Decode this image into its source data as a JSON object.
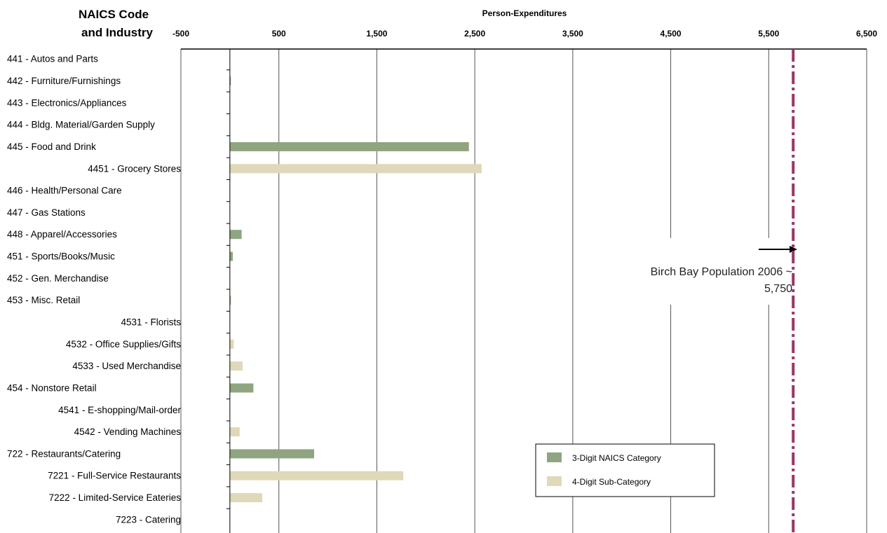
{
  "chart_data": {
    "type": "bar",
    "orientation": "horizontal",
    "y_header": [
      "NAICS Code",
      "and Industry"
    ],
    "xlabel": "Person-Expenditures",
    "xlim": [
      -500,
      6500
    ],
    "xticks": [
      "-500",
      "500",
      "1,500",
      "2,500",
      "3,500",
      "4,500",
      "5,500",
      "6,500"
    ],
    "grid": true,
    "categories": [
      {
        "label": "441 - Autos and Parts",
        "value": 0,
        "level": "3-digit"
      },
      {
        "label": "442 - Furniture/Furnishings",
        "value": 10,
        "level": "3-digit"
      },
      {
        "label": "443 - Electronics/Appliances",
        "value": 0,
        "level": "3-digit"
      },
      {
        "label": "444 - Bldg. Material/Garden Supply",
        "value": 0,
        "level": "3-digit"
      },
      {
        "label": "445 - Food and Drink",
        "value": 2440,
        "level": "3-digit"
      },
      {
        "label": "4451 - Grocery Stores",
        "value": 2570,
        "level": "4-digit"
      },
      {
        "label": "446 - Health/Personal Care",
        "value": 0,
        "level": "3-digit"
      },
      {
        "label": "447 - Gas Stations",
        "value": 0,
        "level": "3-digit"
      },
      {
        "label": "448 - Apparel/Accessories",
        "value": 120,
        "level": "3-digit"
      },
      {
        "label": "451 - Sports/Books/Music",
        "value": 30,
        "level": "3-digit"
      },
      {
        "label": "452 - Gen. Merchandise",
        "value": 0,
        "level": "3-digit"
      },
      {
        "label": "453 - Misc. Retail",
        "value": 10,
        "level": "3-digit"
      },
      {
        "label": "4531 - Florists",
        "value": 0,
        "level": "4-digit"
      },
      {
        "label": "4532 - Office Supplies/Gifts",
        "value": 40,
        "level": "4-digit"
      },
      {
        "label": "4533 - Used Merchandise",
        "value": 130,
        "level": "4-digit"
      },
      {
        "label": "454 - Nonstore Retail",
        "value": 240,
        "level": "3-digit"
      },
      {
        "label": "4541 - E-shopping/Mail-order",
        "value": 0,
        "level": "4-digit"
      },
      {
        "label": "4542 - Vending Machines",
        "value": 100,
        "level": "4-digit"
      },
      {
        "label": "722 - Restaurants/Catering",
        "value": 860,
        "level": "3-digit"
      },
      {
        "label": "7221 - Full-Service Restaurants",
        "value": 1770,
        "level": "4-digit"
      },
      {
        "label": "7222 - Limited-Service Eateries",
        "value": 330,
        "level": "4-digit"
      },
      {
        "label": "7223 - Catering",
        "value": 0,
        "level": "4-digit"
      }
    ],
    "reference_line": {
      "value": 5750,
      "label_lines": [
        "Birch Bay Population 2006 ~",
        "5,750"
      ],
      "color": "#9c3565",
      "style": "dash-dot"
    },
    "legend": {
      "position": "bottom-right",
      "items": [
        {
          "label": "3-Digit NAICS Category",
          "color": "#8fa57f"
        },
        {
          "label": "4-Digit Sub-Category",
          "color": "#dfd8b9"
        }
      ]
    },
    "colors": {
      "three_digit": "#8fa57f",
      "four_digit": "#dfd8b9",
      "grid": "#555555",
      "reference": "#9c3565"
    }
  }
}
